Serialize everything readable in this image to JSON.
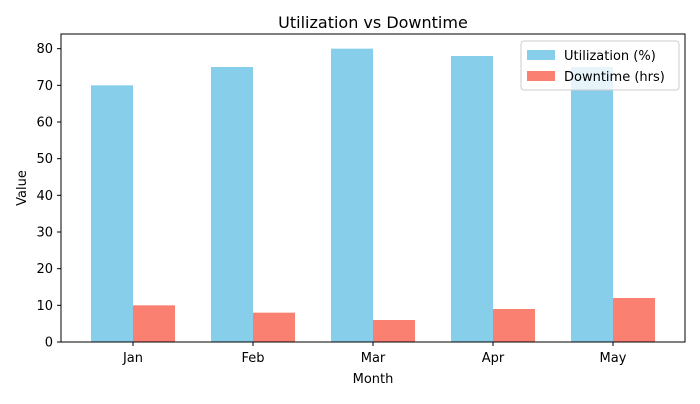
{
  "chart_data": {
    "type": "bar",
    "title": "Utilization vs Downtime",
    "xlabel": "Month",
    "ylabel": "Value",
    "categories": [
      "Jan",
      "Feb",
      "Mar",
      "Apr",
      "May"
    ],
    "series": [
      {
        "name": "Utilization (%)",
        "values": [
          70,
          75,
          80,
          78,
          75
        ],
        "color": "#87ceeb"
      },
      {
        "name": "Downtime (hrs)",
        "values": [
          10,
          8,
          6,
          9,
          12
        ],
        "color": "#fa8072"
      }
    ],
    "ylim": [
      0,
      84
    ],
    "yticks": [
      0,
      10,
      20,
      30,
      40,
      50,
      60,
      70,
      80
    ],
    "grid": false,
    "legend": "top-right"
  }
}
